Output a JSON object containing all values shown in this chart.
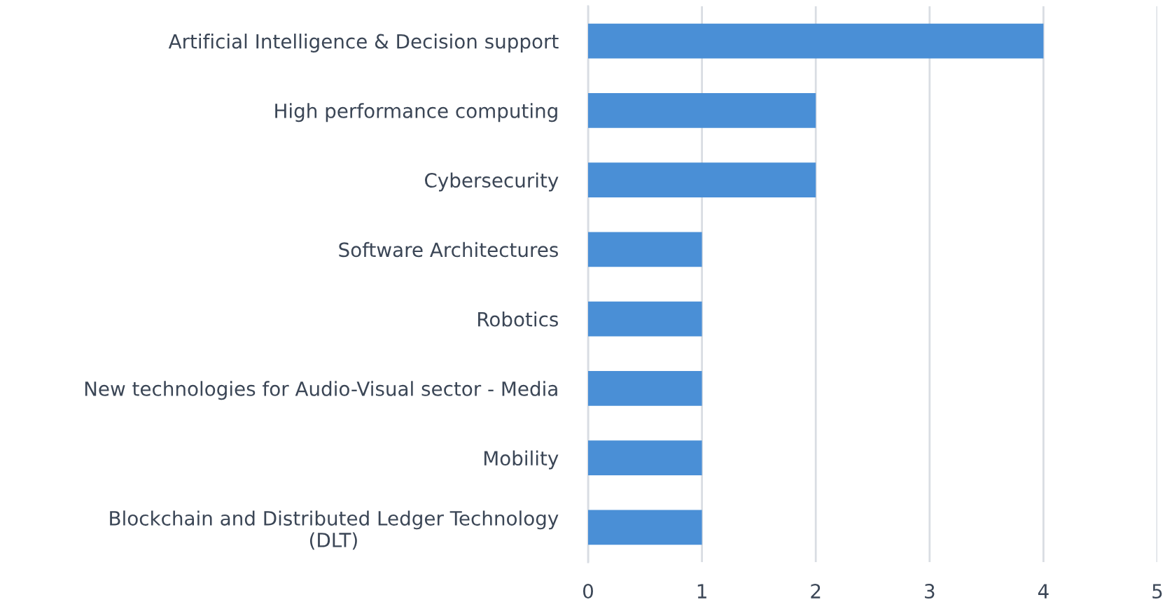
{
  "chart_data": {
    "type": "bar",
    "orientation": "horizontal",
    "categories": [
      "Artificial Intelligence & Decision support",
      "High performance computing",
      "Cybersecurity",
      "Software Architectures",
      "Robotics",
      "New technologies for Audio-Visual sector - Media",
      "Mobility",
      "Blockchain and Distributed Ledger Technology\n(DLT)"
    ],
    "values": [
      4,
      2,
      2,
      1,
      1,
      1,
      1,
      1
    ],
    "color": "#4a8fd6",
    "xlim": [
      0,
      5
    ],
    "xticks": [
      0,
      1,
      2,
      3,
      4,
      5
    ],
    "grid": "x"
  }
}
